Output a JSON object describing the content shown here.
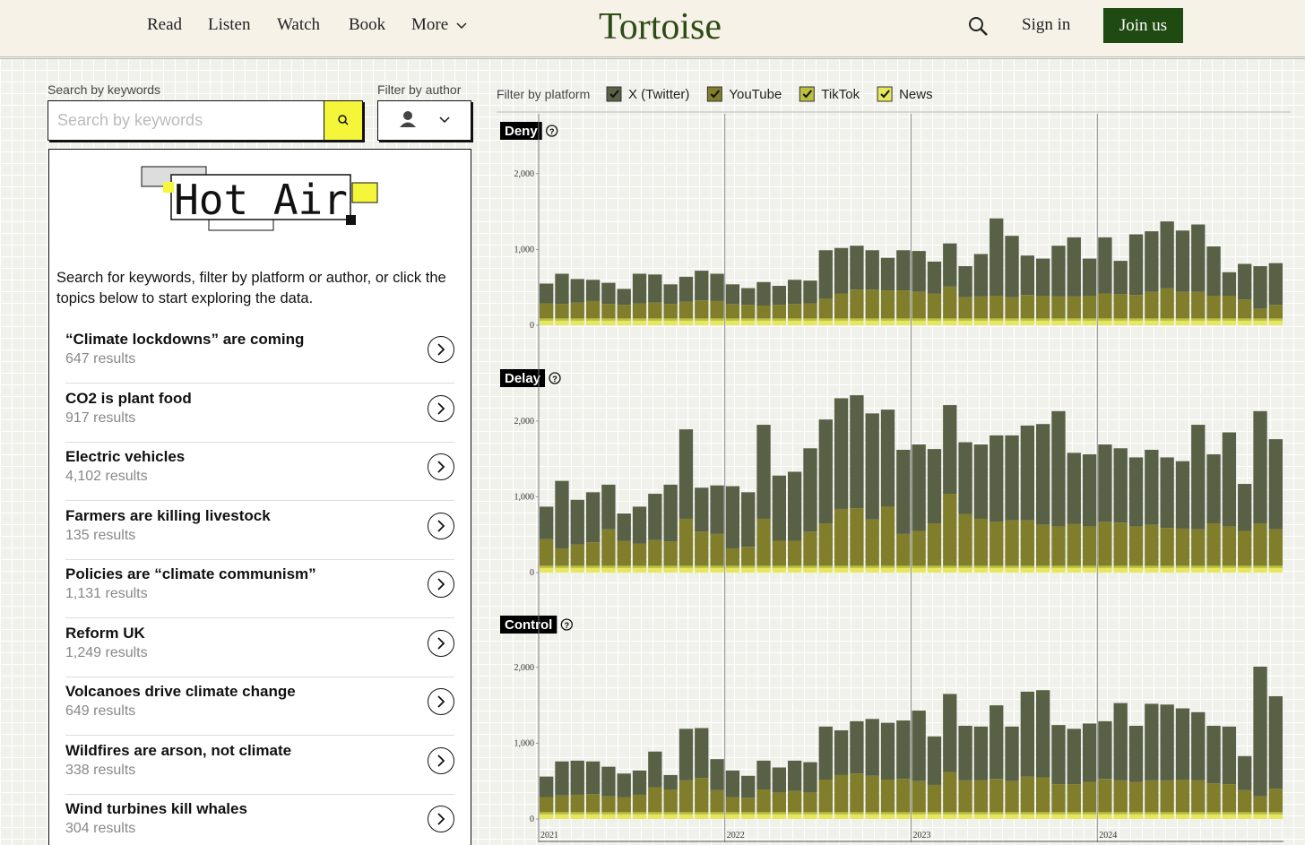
{
  "nav": {
    "items": [
      "Read",
      "Listen",
      "Watch",
      "Book",
      "More"
    ],
    "logo": "Tortoise",
    "sign_in": "Sign in",
    "join": "Join us"
  },
  "search": {
    "label": "Search by keywords",
    "placeholder": "Search by keywords",
    "author_label": "Filter by author"
  },
  "panel": {
    "logo": "Hot Air",
    "intro": "Search for keywords, filter by platform or author, or click the topics below to start exploring the data.",
    "topics": [
      {
        "title": "“Climate lockdowns” are coming",
        "results": "647 results"
      },
      {
        "title": "CO2 is plant food",
        "results": "917 results"
      },
      {
        "title": "Electric vehicles",
        "results": "4,102 results"
      },
      {
        "title": "Farmers are killing livestock",
        "results": "135 results"
      },
      {
        "title": "Policies are “climate communism”",
        "results": "1,131 results"
      },
      {
        "title": "Reform UK",
        "results": "1,249 results"
      },
      {
        "title": "Volcanoes drive climate change",
        "results": "649 results"
      },
      {
        "title": "Wildfires are arson, not climate",
        "results": "338 results"
      },
      {
        "title": "Wind turbines kill whales",
        "results": "304 results"
      }
    ]
  },
  "platform_filter": "Filter by platform",
  "chart_data": [
    {
      "type": "stacked_bar",
      "title": "Deny",
      "ylim": [
        0,
        2400
      ],
      "yticks": [
        0,
        {
          "value": 1000,
          "label": "1,000"
        },
        {
          "value": 2000,
          "label": "2,000"
        }
      ],
      "series": [
        {
          "name": "X (Twitter)",
          "color": "#586046",
          "values": [
            260,
            400,
            310,
            280,
            280,
            210,
            390,
            370,
            260,
            330,
            390,
            360,
            260,
            220,
            310,
            250,
            320,
            300,
            640,
            600,
            580,
            520,
            430,
            530,
            540,
            420,
            570,
            410,
            560,
            1020,
            810,
            520,
            490,
            670,
            780,
            490,
            740,
            440,
            800,
            800,
            880,
            810,
            890,
            650,
            310,
            470,
            560,
            550
          ]
        },
        {
          "name": "YouTube",
          "color": "#807e2a",
          "values": [
            200,
            190,
            210,
            230,
            190,
            180,
            200,
            210,
            190,
            220,
            240,
            230,
            190,
            180,
            170,
            180,
            190,
            200,
            260,
            330,
            380,
            380,
            370,
            370,
            350,
            330,
            420,
            280,
            290,
            300,
            280,
            310,
            300,
            290,
            290,
            300,
            330,
            320,
            310,
            350,
            400,
            350,
            350,
            300,
            300,
            250,
            130,
            180
          ]
        },
        {
          "name": "TikTok",
          "color": "#bdbf3f",
          "values": [
            30,
            30,
            30,
            30,
            30,
            30,
            30,
            30,
            30,
            30,
            30,
            30,
            30,
            30,
            30,
            30,
            30,
            30,
            30,
            30,
            30,
            30,
            30,
            30,
            30,
            30,
            30,
            30,
            30,
            30,
            30,
            30,
            30,
            30,
            30,
            30,
            30,
            30,
            30,
            30,
            30,
            30,
            30,
            30,
            30,
            30,
            30,
            30
          ]
        },
        {
          "name": "News",
          "color": "#e5e75c",
          "values": [
            60,
            60,
            60,
            60,
            60,
            60,
            60,
            60,
            60,
            60,
            60,
            60,
            60,
            60,
            60,
            60,
            60,
            60,
            60,
            60,
            60,
            60,
            60,
            60,
            60,
            60,
            60,
            60,
            60,
            60,
            60,
            60,
            60,
            60,
            60,
            60,
            60,
            60,
            60,
            60,
            60,
            60,
            60,
            60,
            60,
            60,
            60,
            60
          ]
        }
      ]
    },
    {
      "type": "stacked_bar",
      "title": "Delay",
      "ylim": [
        0,
        2400
      ],
      "yticks": [
        0,
        {
          "value": 1000,
          "label": "1,000"
        },
        {
          "value": 2000,
          "label": "2,000"
        }
      ],
      "series": [
        {
          "name": "X (Twitter)",
          "color": "#586046",
          "values": [
            430,
            890,
            590,
            660,
            590,
            360,
            490,
            610,
            750,
            1180,
            580,
            640,
            820,
            720,
            1240,
            860,
            910,
            1100,
            1370,
            1460,
            1490,
            1400,
            1280,
            1110,
            1140,
            980,
            1170,
            950,
            980,
            1140,
            1120,
            1250,
            1330,
            1520,
            940,
            950,
            1020,
            980,
            910,
            990,
            930,
            890,
            1380,
            910,
            1240,
            620,
            1480,
            1190
          ]
        },
        {
          "name": "YouTube",
          "color": "#807e2a",
          "values": [
            350,
            230,
            280,
            310,
            480,
            330,
            290,
            340,
            320,
            620,
            450,
            420,
            230,
            250,
            620,
            330,
            330,
            450,
            560,
            750,
            760,
            610,
            780,
            420,
            460,
            560,
            950,
            680,
            620,
            580,
            600,
            600,
            540,
            520,
            550,
            520,
            580,
            570,
            520,
            540,
            500,
            490,
            480,
            560,
            520,
            460,
            560,
            480
          ]
        },
        {
          "name": "TikTok",
          "color": "#bdbf3f",
          "values": [
            30,
            30,
            30,
            30,
            30,
            30,
            30,
            30,
            30,
            30,
            30,
            30,
            30,
            30,
            30,
            30,
            30,
            30,
            30,
            30,
            30,
            30,
            30,
            30,
            30,
            30,
            30,
            30,
            30,
            30,
            30,
            30,
            30,
            30,
            30,
            30,
            30,
            30,
            30,
            30,
            30,
            30,
            30,
            30,
            30,
            30,
            30,
            30
          ]
        },
        {
          "name": "News",
          "color": "#e5e75c",
          "values": [
            60,
            60,
            60,
            60,
            60,
            60,
            60,
            60,
            60,
            60,
            60,
            60,
            60,
            60,
            60,
            60,
            60,
            60,
            60,
            60,
            60,
            60,
            60,
            60,
            60,
            60,
            60,
            60,
            60,
            60,
            60,
            60,
            60,
            60,
            60,
            60,
            60,
            60,
            60,
            60,
            60,
            60,
            60,
            60,
            60,
            60,
            60,
            60
          ]
        }
      ]
    },
    {
      "type": "stacked_bar",
      "title": "Control",
      "ylim": [
        0,
        2400
      ],
      "yticks": [
        0,
        {
          "value": 1000,
          "label": "1,000"
        },
        {
          "value": 2000,
          "label": "2,000"
        }
      ],
      "categories": [
        "2021",
        null,
        null,
        null,
        null,
        null,
        null,
        null,
        null,
        null,
        null,
        null,
        "2022",
        null,
        null,
        null,
        null,
        null,
        null,
        null,
        null,
        null,
        null,
        null,
        "2023",
        null,
        null,
        null,
        null,
        null,
        null,
        null,
        null,
        null,
        null,
        null,
        "2024",
        null,
        null,
        null,
        null,
        null,
        null,
        null,
        null,
        null,
        null,
        null
      ],
      "series": [
        {
          "name": "X (Twitter)",
          "color": "#586046",
          "values": [
            270,
            450,
            450,
            430,
            390,
            310,
            320,
            470,
            190,
            680,
            660,
            410,
            350,
            290,
            380,
            330,
            400,
            400,
            700,
            590,
            690,
            750,
            750,
            770,
            930,
            640,
            1030,
            720,
            710,
            970,
            720,
            1120,
            1150,
            780,
            730,
            770,
            760,
            1020,
            740,
            1010,
            1000,
            940,
            900,
            760,
            760,
            450,
            1710,
            1220
          ]
        },
        {
          "name": "YouTube",
          "color": "#807e2a",
          "values": [
            200,
            220,
            230,
            240,
            210,
            200,
            230,
            330,
            300,
            420,
            450,
            290,
            200,
            190,
            300,
            260,
            280,
            260,
            430,
            490,
            510,
            480,
            430,
            440,
            410,
            360,
            530,
            420,
            420,
            440,
            410,
            470,
            460,
            370,
            370,
            400,
            440,
            420,
            400,
            420,
            420,
            430,
            420,
            380,
            370,
            290,
            210,
            310
          ]
        },
        {
          "name": "TikTok",
          "color": "#bdbf3f",
          "values": [
            30,
            30,
            30,
            30,
            30,
            30,
            30,
            30,
            30,
            30,
            30,
            30,
            30,
            30,
            30,
            30,
            30,
            30,
            30,
            30,
            30,
            30,
            30,
            30,
            30,
            30,
            30,
            30,
            30,
            30,
            30,
            30,
            30,
            30,
            30,
            30,
            30,
            30,
            30,
            30,
            30,
            30,
            30,
            30,
            30,
            30,
            30,
            30
          ]
        },
        {
          "name": "News",
          "color": "#e5e75c",
          "values": [
            60,
            60,
            60,
            60,
            60,
            60,
            60,
            60,
            60,
            60,
            60,
            60,
            60,
            60,
            60,
            60,
            60,
            60,
            60,
            60,
            60,
            60,
            60,
            60,
            60,
            60,
            60,
            60,
            60,
            60,
            60,
            60,
            60,
            60,
            60,
            60,
            60,
            60,
            60,
            60,
            60,
            60,
            60,
            60,
            60,
            60,
            60,
            60
          ]
        }
      ]
    }
  ]
}
